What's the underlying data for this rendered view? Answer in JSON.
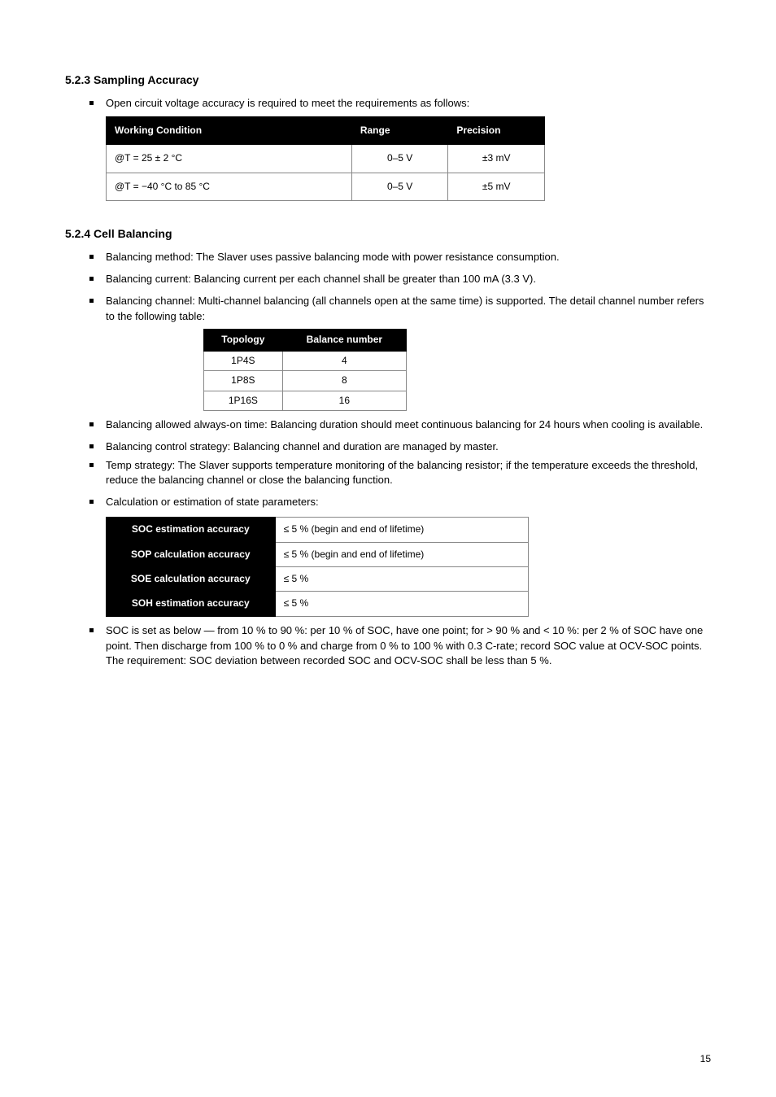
{
  "colors": {
    "background": "#ffffff",
    "text": "#000000",
    "table_header_bg": "#000000",
    "table_header_fg": "#ffffff",
    "table_border": "#888888"
  },
  "section1": {
    "heading": "5.2.3  Sampling Accuracy",
    "bullet_pre": "Open circuit voltage accuracy is required to meet the requirements as follows:",
    "table": {
      "headers": [
        "Working Condition",
        "Range",
        "Precision"
      ],
      "rows": [
        [
          "@T = 25 ± 2 °C",
          "0–5 V",
          "±3 mV"
        ],
        [
          "@T = −40 °C to 85 °C",
          "0–5 V",
          "±5 mV"
        ]
      ],
      "col_widths_pct": [
        56,
        22,
        22
      ]
    }
  },
  "section2": {
    "heading": "5.2.4  Cell Balancing",
    "bullets": [
      "Balancing method: The Slaver uses passive balancing mode with power resistance consumption.",
      "Balancing current: Balancing current per each channel shall be greater than 100 mA (3.3 V).",
      "Balancing channel: Multi-channel balancing (all channels open at the same time) is supported. The detail channel number refers to the following table:"
    ],
    "table": {
      "headers": [
        "Topology",
        "Balance number"
      ],
      "rows": [
        [
          "1P4S",
          "4"
        ],
        [
          "1P8S",
          "8"
        ],
        [
          "1P16S",
          "16"
        ]
      ]
    },
    "tail_bullets": [
      "Balancing allowed always-on time: Balancing duration should meet continuous balancing for 24 hours when cooling is available.",
      "Balancing control strategy: Balancing channel and duration are managed by master.",
      "Temp strategy: The Slaver supports temperature monitoring of the balancing resistor; if the temperature exceeds the threshold, reduce the balancing channel or close the balancing function."
    ]
  },
  "section3": {
    "bullet": "Calculation or estimation of state parameters:",
    "table": {
      "rows": [
        [
          "SOC estimation accuracy",
          "≤ 5 % (begin and end of lifetime)"
        ],
        [
          "SOP calculation accuracy",
          "≤ 5 % (begin and end of lifetime)"
        ],
        [
          "SOE calculation accuracy",
          "≤ 5 %"
        ],
        [
          "SOH estimation accuracy",
          "≤ 5 %"
        ]
      ],
      "col_widths_pct": [
        40,
        60
      ]
    }
  },
  "section4": {
    "bullet": "SOC is set as below — from 10 % to 90 %: per 10 % of SOC, have one point; for > 90 % and < 10 %: per 2 % of SOC have one point. Then discharge from 100 % to 0 % and charge from 0 % to 100 % with 0.3 C-rate; record SOC value at OCV-SOC points. The requirement: SOC deviation between recorded SOC and OCV-SOC shall be less than 5 %."
  },
  "page_number": "15"
}
